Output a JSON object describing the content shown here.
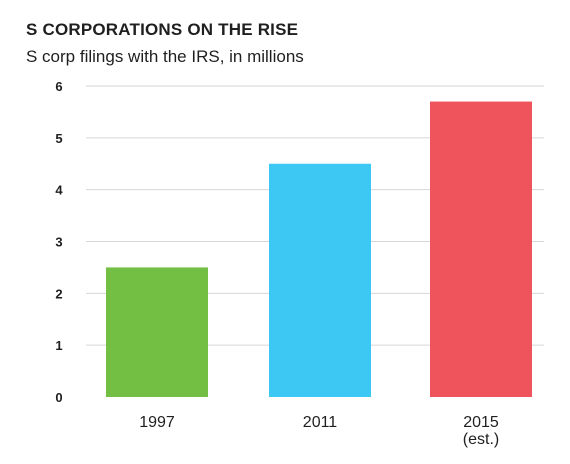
{
  "chart_data": {
    "type": "bar",
    "title": "S CORPORATIONS ON THE RISE",
    "subtitle": "S corp filings with the IRS, in millions",
    "xlabel": "",
    "ylabel": "",
    "categories": [
      [
        "1997"
      ],
      [
        "2011"
      ],
      [
        "2015",
        "(est.)"
      ]
    ],
    "values": [
      2.5,
      4.5,
      5.7
    ],
    "colors": [
      "#72bf44",
      "#3cc8f2",
      "#ef545d"
    ],
    "yticks": [
      "0",
      "1",
      "2",
      "3",
      "4",
      "5",
      "6"
    ],
    "ylim": [
      0,
      6
    ],
    "grid": true,
    "legend": "none"
  }
}
